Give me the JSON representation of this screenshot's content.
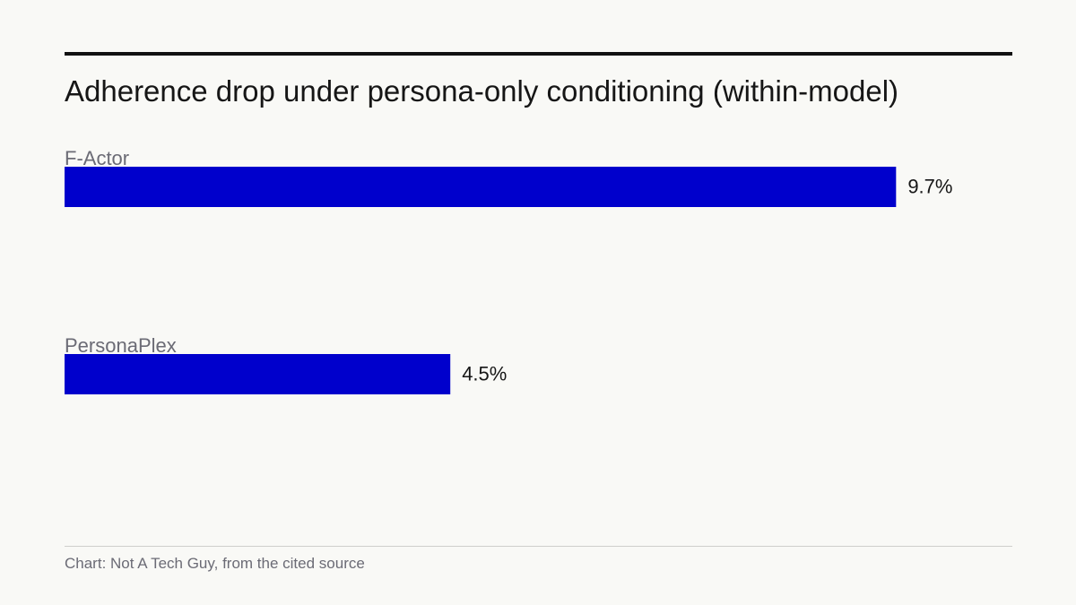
{
  "title": "Adherence drop under persona-only conditioning (within-model)",
  "source": "Chart: Not A Tech Guy, from the cited source",
  "colors": {
    "bar": "#0000cc",
    "category_label": "#6b6b75",
    "value_label": "#161616",
    "background": "#f9f9f6"
  },
  "chart_data": {
    "type": "bar",
    "orientation": "horizontal",
    "title": "Adherence drop under persona-only conditioning (within-model)",
    "categories": [
      "F-Actor",
      "PersonaPlex"
    ],
    "values": [
      9.7,
      4.5
    ],
    "value_labels": [
      "9.7%",
      "4.5%"
    ],
    "unit": "%",
    "xlabel": "",
    "ylabel": "",
    "grid": false,
    "legend": "none"
  }
}
